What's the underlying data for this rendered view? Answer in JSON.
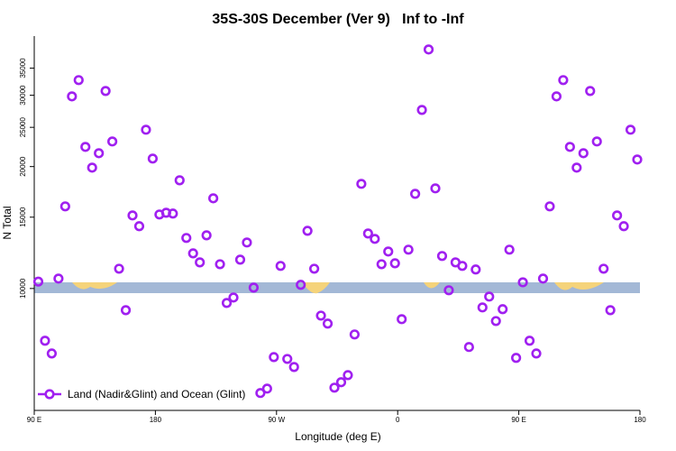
{
  "chart_data": {
    "type": "scatter",
    "title": "35S-30S December (Ver 9)   Inf to -Inf",
    "x_label": "Longitude (deg E)",
    "y_label": "N Total",
    "y_log": true,
    "legend": "bottom-left",
    "xlim": [
      -270,
      180
    ],
    "xticks": [
      {
        "value": -270,
        "label": "90 E"
      },
      {
        "value": -180,
        "label": "180"
      },
      {
        "value": -90,
        "label": "90 W"
      },
      0,
      {
        "value": 90,
        "label": "90 E"
      },
      180
    ],
    "ylim": [
      5000,
      42000
    ],
    "yticks": [
      10000,
      15000,
      20000,
      25000,
      30000,
      35000
    ],
    "series": [
      {
        "name": "Land (Nadir&Glint) and Ocean (Glint)",
        "color": "#a020f0",
        "x": [
          -267,
          -262,
          -257,
          -252,
          -247,
          -242,
          -237,
          -232,
          -227,
          -222,
          -217,
          -212,
          -207,
          -202,
          -197,
          -192,
          -187,
          -182,
          -177,
          -172,
          -167,
          -162,
          -157,
          -152,
          -147,
          -142,
          -137,
          -132,
          -127,
          -122,
          -117,
          -112,
          -107,
          -102,
          -97,
          -92,
          -87,
          -82,
          -77,
          -72,
          -67,
          -62,
          -57,
          -52,
          -47,
          -42,
          -37,
          -32,
          -27,
          -22,
          -17,
          -12,
          -7,
          -2,
          3,
          8,
          13,
          18,
          23,
          28,
          33,
          38,
          43,
          48,
          53,
          58,
          63,
          68,
          73,
          78,
          83,
          88,
          93,
          98,
          103,
          108,
          113,
          118,
          123,
          128,
          133,
          138,
          143,
          148,
          153,
          158,
          163,
          168,
          173,
          178
        ],
        "values": [
          10400,
          7430,
          6910,
          10580,
          15950,
          29810,
          32700,
          22370,
          19880,
          21580,
          30740,
          23070,
          11190,
          8840,
          15150,
          14250,
          24660,
          20930,
          15230,
          15380,
          15310,
          18500,
          13330,
          12210,
          11600,
          13530,
          16700,
          11480,
          9210,
          9500,
          11780,
          12990,
          10050,
          5520,
          5660,
          6770,
          11370,
          6700,
          6400,
          10210,
          13880,
          11190,
          8570,
          8190,
          5690,
          5870,
          6110,
          7700,
          18130,
          13670,
          13260,
          11480,
          12340,
          11540,
          8400,
          12470,
          17130,
          27600,
          38920,
          17670,
          12030,
          9900,
          11600,
          11370,
          7170,
          11140,
          8980,
          9550,
          8310,
          8890,
          12470,
          6740,
          10360,
          7430,
          6910,
          10580,
          15950,
          29810,
          32700,
          22370,
          19880,
          21580,
          30740,
          23070,
          11190,
          8840,
          15150,
          14250,
          24660,
          20820
        ]
      }
    ]
  }
}
